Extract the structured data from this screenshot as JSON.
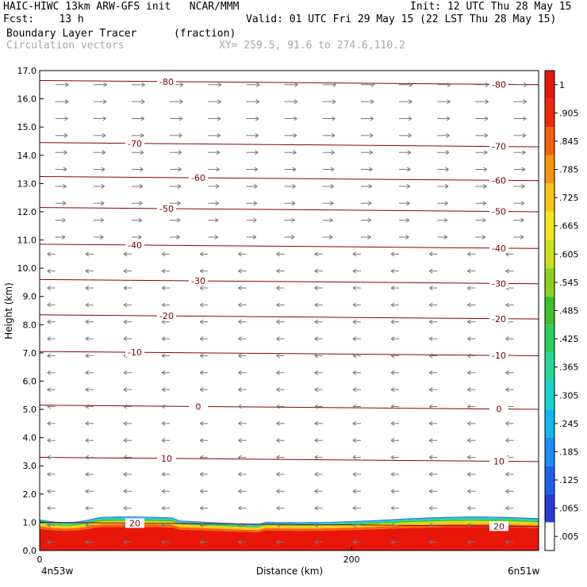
{
  "header": {
    "line1_left": "HAIC-HIWC 13km ARW-GFS init   NCAR/MMM",
    "line1_right": "Init: 12 UTC Thu 28 May 15",
    "line2_left": "Fcst:    13 h",
    "line2_right": "Valid: 01 UTC Fri 29 May 15 (22 LST Thu 28 May 15)",
    "line3_left": "Boundary Layer Tracer",
    "line3_units": "(fraction)",
    "line4_left": "Circulation vectors",
    "line4_xy": "XY= 259.5, 91.6 to 274.6,110.2"
  },
  "chart_data": {
    "type": "heatmap",
    "xlabel": "Distance (km)",
    "ylabel": "Height (km)",
    "xlim": [
      0,
      320
    ],
    "ylim": [
      0,
      17
    ],
    "x_ticks": [
      "0",
      "200"
    ],
    "y_ticks": [
      "0.0",
      "1.0",
      "2.0",
      "3.0",
      "4.0",
      "5.0",
      "6.0",
      "7.0",
      "8.0",
      "9.0",
      "10.0",
      "11.0",
      "12.0",
      "13.0",
      "14.0",
      "15.0",
      "16.0",
      "17.0"
    ],
    "endpoints": {
      "left": "4n53w",
      "right": "6n51w"
    },
    "temperature_contours": [
      {
        "level": "20",
        "height_km": 0.95
      },
      {
        "level": "10",
        "height_km": 3.25
      },
      {
        "level": "0",
        "height_km": 5.1
      },
      {
        "level": "-10",
        "height_km": 7.0
      },
      {
        "level": "-20",
        "height_km": 8.3
      },
      {
        "level": "-30",
        "height_km": 9.55
      },
      {
        "level": "-40",
        "height_km": 10.8
      },
      {
        "level": "-50",
        "height_km": 12.1
      },
      {
        "level": "-60",
        "height_km": 13.2
      },
      {
        "level": "-70",
        "height_km": 14.4
      },
      {
        "level": "-80",
        "height_km": 16.6
      }
    ],
    "colorbar": {
      "labels": [
        ".005",
        ".065",
        ".125",
        ".185",
        ".245",
        ".305",
        ".365",
        ".425",
        ".485",
        ".545",
        ".605",
        ".665",
        ".725",
        ".785",
        ".845",
        ".905",
        "1"
      ],
      "colors": [
        "#ffffff",
        "#2a3cd6",
        "#1e5ff0",
        "#1d8cf5",
        "#12b6ee",
        "#19d3cf",
        "#26d99a",
        "#2bcf5a",
        "#3cc22a",
        "#8ed11d",
        "#c8e01b",
        "#f0e81c",
        "#f7c615",
        "#f79410",
        "#f5620c",
        "#f02a08",
        "#e8170a"
      ]
    },
    "tracer_layer": {
      "base_km": 0.0,
      "top_km": 1.1,
      "dominant_value": "1",
      "description_levels": [
        ".905",
        "1"
      ]
    },
    "vectors": {
      "lower_flow": "easterly (pointing left) below ~10 km",
      "upper_flow": "westerly (pointing right) above ~11 km"
    }
  }
}
